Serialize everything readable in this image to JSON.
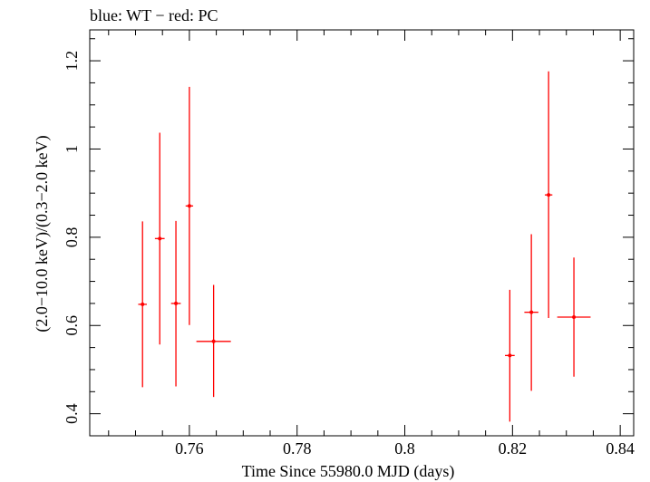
{
  "chart_data": {
    "type": "scatter",
    "title": "blue: WT − red: PC",
    "xlabel": "Time Since 55980.0 MJD (days)",
    "ylabel": "(2.0−10.0 keV)/(0.3−2.0 keV)",
    "xlim": [
      0.7415,
      0.8425
    ],
    "ylim": [
      0.35,
      1.27
    ],
    "x_ticks": [
      0.76,
      0.78,
      0.8,
      0.82,
      0.84
    ],
    "x_tick_labels": [
      "0.76",
      "0.78",
      "0.8",
      "0.82",
      "0.84"
    ],
    "y_ticks": [
      0.4,
      0.6,
      0.8,
      1.0,
      1.2
    ],
    "y_tick_labels": [
      "0.4",
      "0.6",
      "0.8",
      "1",
      "1.2"
    ],
    "x_minor_step": 0.005,
    "y_minor_step": 0.05,
    "series": [
      {
        "name": "WT",
        "color": "#0000ff",
        "points": []
      },
      {
        "name": "PC",
        "color": "#ff0000",
        "points": [
          {
            "x": 0.7513,
            "xerr": 0.0008,
            "y": 0.648,
            "ylo": 0.46,
            "yhi": 0.836
          },
          {
            "x": 0.7545,
            "xerr": 0.0009,
            "y": 0.797,
            "ylo": 0.557,
            "yhi": 1.037
          },
          {
            "x": 0.7575,
            "xerr": 0.0009,
            "y": 0.65,
            "ylo": 0.462,
            "yhi": 0.837
          },
          {
            "x": 0.76,
            "xerr": 0.0007,
            "y": 0.871,
            "ylo": 0.601,
            "yhi": 1.141
          },
          {
            "x": 0.7645,
            "xerr": 0.0032,
            "y": 0.564,
            "ylo": 0.438,
            "yhi": 0.692
          },
          {
            "x": 0.8195,
            "xerr": 0.0009,
            "y": 0.532,
            "ylo": 0.382,
            "yhi": 0.681
          },
          {
            "x": 0.8235,
            "xerr": 0.0013,
            "y": 0.63,
            "ylo": 0.452,
            "yhi": 0.807
          },
          {
            "x": 0.8267,
            "xerr": 0.0007,
            "y": 0.896,
            "ylo": 0.617,
            "yhi": 1.176
          },
          {
            "x": 0.8314,
            "xerr": 0.0031,
            "y": 0.619,
            "ylo": 0.484,
            "yhi": 0.754
          }
        ]
      }
    ]
  }
}
